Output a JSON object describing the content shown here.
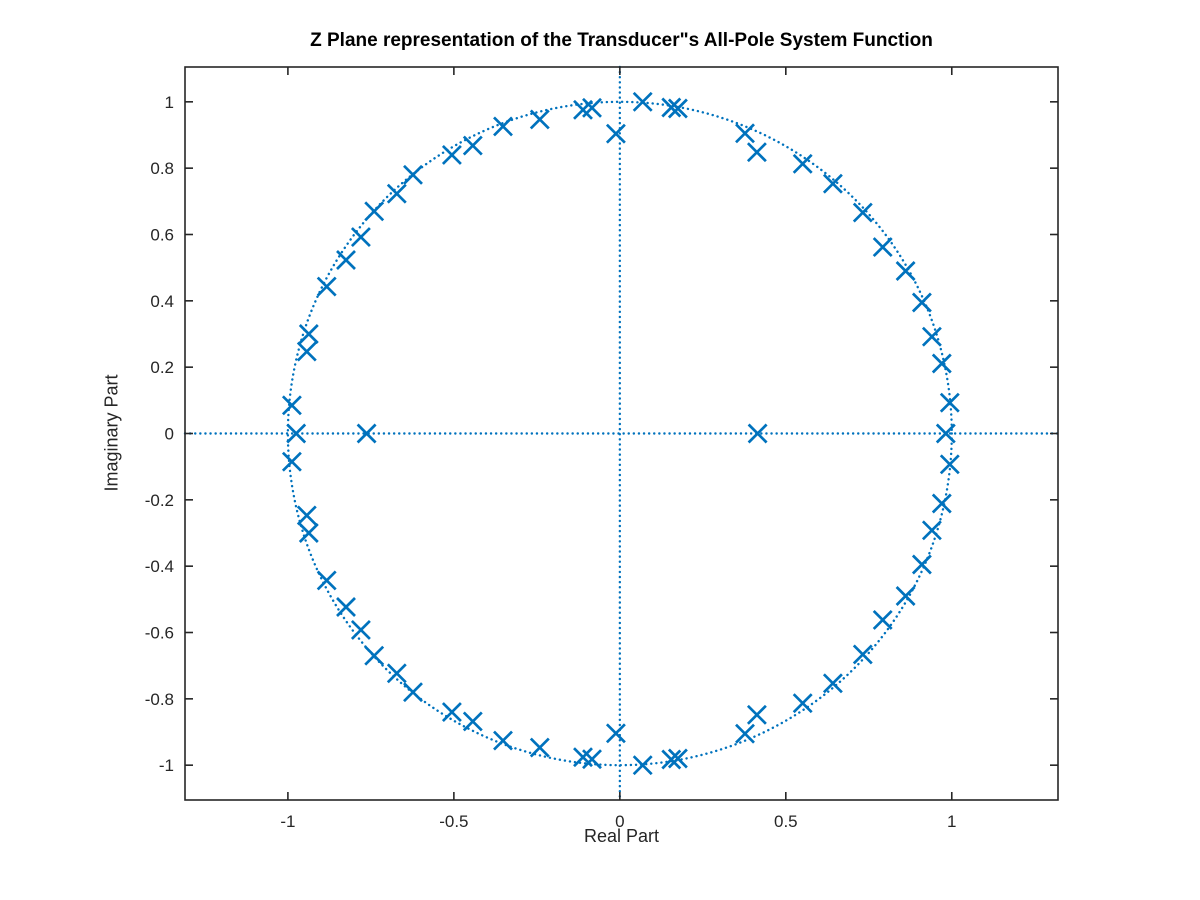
{
  "chart_data": {
    "type": "scatter",
    "title": "Z Plane representation of the Transducer\"s All-Pole System Function",
    "xlabel": "Real Part",
    "ylabel": "Imaginary Part",
    "xlim": [
      -1.31,
      1.32
    ],
    "ylim": [
      -1.105,
      1.105
    ],
    "xticks": [
      -1,
      -0.5,
      0,
      0.5,
      1
    ],
    "xtick_labels": [
      "-1",
      "-0.5",
      "0",
      "0.5",
      "1"
    ],
    "yticks": [
      1,
      0.8,
      0.6,
      0.4,
      0.2,
      0,
      -0.2,
      -0.4,
      -0.6,
      -0.8,
      -1
    ],
    "ytick_labels": [
      "1",
      "0.8",
      "0.6",
      "0.4",
      "0.2",
      "0",
      "-0.2",
      "-0.4",
      "-0.6",
      "-0.8",
      "-1"
    ],
    "grid": false,
    "legend": null,
    "marker": "x",
    "colors": {
      "pole": "#0072BD",
      "reference_lines": "#0072BD",
      "axes_box": "#262626",
      "tick_label": "#262626",
      "title": "#000000"
    },
    "reference_lines": {
      "unit_circle": true,
      "horizontal_axis": true,
      "vertical_axis": true,
      "line_style": "dotted"
    },
    "poles": [
      [
        0.994,
        0.093
      ],
      [
        0.97,
        0.211
      ],
      [
        0.94,
        0.292
      ],
      [
        0.91,
        0.395
      ],
      [
        0.861,
        0.49
      ],
      [
        0.792,
        0.562
      ],
      [
        0.732,
        0.666
      ],
      [
        0.642,
        0.753
      ],
      [
        0.551,
        0.813
      ],
      [
        0.413,
        0.848
      ],
      [
        0.377,
        0.905
      ],
      [
        0.175,
        0.98
      ],
      [
        0.155,
        0.983
      ],
      [
        0.069,
        1.0
      ],
      [
        -0.012,
        0.904
      ],
      [
        -0.084,
        0.982
      ],
      [
        -0.111,
        0.976
      ],
      [
        -0.241,
        0.947
      ],
      [
        -0.352,
        0.926
      ],
      [
        -0.443,
        0.868
      ],
      [
        -0.506,
        0.84
      ],
      [
        -0.623,
        0.78
      ],
      [
        -0.672,
        0.723
      ],
      [
        -0.74,
        0.67
      ],
      [
        -0.78,
        0.592
      ],
      [
        -0.825,
        0.523
      ],
      [
        -0.883,
        0.443
      ],
      [
        -0.937,
        0.3
      ],
      [
        -0.943,
        0.247
      ],
      [
        -0.988,
        0.085
      ],
      [
        0.994,
        -0.093
      ],
      [
        0.97,
        -0.211
      ],
      [
        0.94,
        -0.292
      ],
      [
        0.91,
        -0.395
      ],
      [
        0.861,
        -0.49
      ],
      [
        0.792,
        -0.562
      ],
      [
        0.732,
        -0.666
      ],
      [
        0.642,
        -0.753
      ],
      [
        0.551,
        -0.813
      ],
      [
        0.413,
        -0.848
      ],
      [
        0.377,
        -0.905
      ],
      [
        0.175,
        -0.98
      ],
      [
        0.155,
        -0.983
      ],
      [
        0.069,
        -1.0
      ],
      [
        -0.012,
        -0.904
      ],
      [
        -0.084,
        -0.982
      ],
      [
        -0.111,
        -0.976
      ],
      [
        -0.241,
        -0.947
      ],
      [
        -0.352,
        -0.926
      ],
      [
        -0.443,
        -0.868
      ],
      [
        -0.506,
        -0.84
      ],
      [
        -0.623,
        -0.78
      ],
      [
        -0.672,
        -0.723
      ],
      [
        -0.74,
        -0.67
      ],
      [
        -0.78,
        -0.592
      ],
      [
        -0.825,
        -0.523
      ],
      [
        -0.883,
        -0.443
      ],
      [
        -0.937,
        -0.3
      ],
      [
        -0.943,
        -0.247
      ],
      [
        -0.988,
        -0.085
      ],
      [
        -0.975,
        0
      ],
      [
        -0.763,
        0
      ],
      [
        0.415,
        0
      ],
      [
        0.982,
        0
      ]
    ]
  }
}
